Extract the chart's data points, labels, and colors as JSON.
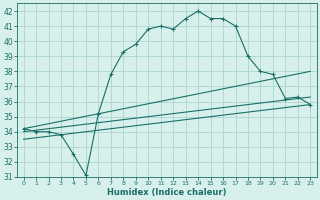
{
  "xlabel": "Humidex (Indice chaleur)",
  "bg_color": "#d8f0ec",
  "grid_color": "#aad4cc",
  "line_color": "#1a7068",
  "xlim": [
    -0.5,
    23.5
  ],
  "ylim": [
    31,
    42.5
  ],
  "yticks": [
    31,
    32,
    33,
    34,
    35,
    36,
    37,
    38,
    39,
    40,
    41,
    42
  ],
  "xticks": [
    0,
    1,
    2,
    3,
    4,
    5,
    6,
    7,
    8,
    9,
    10,
    11,
    12,
    13,
    14,
    15,
    16,
    17,
    18,
    19,
    20,
    21,
    22,
    23
  ],
  "main_x": [
    0,
    1,
    2,
    3,
    4,
    5,
    6,
    7,
    8,
    9,
    10,
    11,
    12,
    13,
    14,
    15,
    16,
    17,
    18,
    19,
    20,
    21,
    22,
    23
  ],
  "main_y": [
    34.2,
    34.0,
    34.0,
    33.8,
    32.5,
    31.1,
    35.2,
    37.8,
    39.3,
    39.8,
    40.8,
    41.0,
    40.8,
    41.5,
    42.0,
    41.5,
    41.5,
    41.0,
    39.0,
    38.0,
    37.8,
    36.2,
    36.3,
    35.8
  ],
  "line1_x": [
    0,
    23
  ],
  "line1_y": [
    34.2,
    38.0
  ],
  "line2_x": [
    0,
    23
  ],
  "line2_y": [
    34.0,
    36.3
  ],
  "line3_x": [
    0,
    23
  ],
  "line3_y": [
    33.5,
    35.8
  ],
  "xlabel_fontsize": 6.0,
  "ytick_fontsize": 5.5,
  "xtick_fontsize": 4.5
}
